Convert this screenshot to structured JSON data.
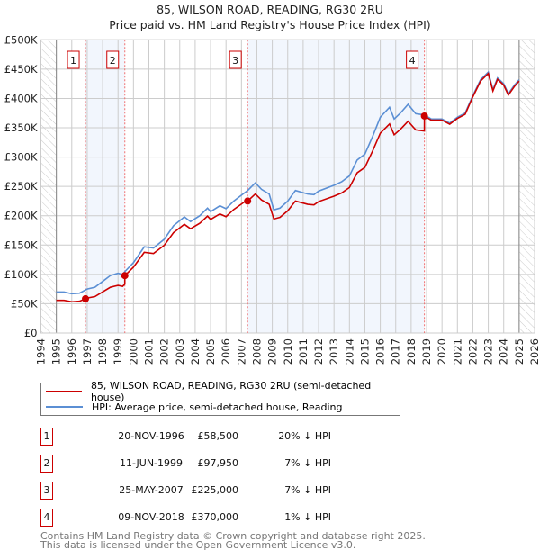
{
  "title": "85, WILSON ROAD, READING, RG30 2RU",
  "subtitle": "Price paid vs. HM Land Registry's House Price Index (HPI)",
  "chart_data": {
    "type": "line",
    "ylim": [
      0,
      500000
    ],
    "xlim": [
      1994,
      2026
    ],
    "yticks": [
      0,
      50000,
      100000,
      150000,
      200000,
      250000,
      300000,
      350000,
      400000,
      450000,
      500000
    ],
    "ytick_labels": [
      "£0",
      "£50K",
      "£100K",
      "£150K",
      "£200K",
      "£250K",
      "£300K",
      "£350K",
      "£400K",
      "£450K",
      "£500K"
    ],
    "xtick_labels": [
      "1994",
      "1995",
      "1996",
      "1997",
      "1998",
      "1999",
      "2000",
      "2001",
      "2002",
      "2003",
      "2004",
      "2005",
      "2006",
      "2007",
      "2008",
      "2009",
      "2010",
      "2011",
      "2012",
      "2013",
      "2014",
      "2015",
      "2016",
      "2017",
      "2018",
      "2019",
      "2020",
      "2021",
      "2022",
      "2023",
      "2024",
      "2025",
      "2026"
    ],
    "data_range": [
      1995,
      2025
    ],
    "grid": true,
    "legend_placement": "below",
    "series": [
      {
        "name": "85, WILSON ROAD, READING, RG30 2RU (semi-detached house)",
        "color": "#cc0000",
        "derived_from_sales": true
      },
      {
        "name": "HPI: Average price, semi-detached house, Reading",
        "color": "#5b8fd4",
        "points": [
          [
            1995,
            70000
          ],
          [
            1995.5,
            70000
          ],
          [
            1996,
            67000
          ],
          [
            1996.5,
            68000
          ],
          [
            1997,
            75000
          ],
          [
            1997.5,
            78000
          ],
          [
            1998,
            88000
          ],
          [
            1998.5,
            98000
          ],
          [
            1999,
            102000
          ],
          [
            1999.3,
            100000
          ],
          [
            1999.45,
            105000
          ],
          [
            2000,
            120000
          ],
          [
            2000.7,
            147000
          ],
          [
            2001.3,
            145000
          ],
          [
            2002,
            160000
          ],
          [
            2002.6,
            183000
          ],
          [
            2003.3,
            198000
          ],
          [
            2003.7,
            190000
          ],
          [
            2004.3,
            200000
          ],
          [
            2004.8,
            213000
          ],
          [
            2005,
            207000
          ],
          [
            2005.6,
            217000
          ],
          [
            2006,
            212000
          ],
          [
            2006.5,
            225000
          ],
          [
            2007,
            235000
          ],
          [
            2007.4,
            243000
          ],
          [
            2007.9,
            256000
          ],
          [
            2008.3,
            245000
          ],
          [
            2008.8,
            237000
          ],
          [
            2009.1,
            210000
          ],
          [
            2009.5,
            213000
          ],
          [
            2010,
            225000
          ],
          [
            2010.5,
            243000
          ],
          [
            2011.3,
            237000
          ],
          [
            2011.7,
            236000
          ],
          [
            2012,
            242000
          ],
          [
            2013,
            252000
          ],
          [
            2013.5,
            258000
          ],
          [
            2014,
            268000
          ],
          [
            2014.5,
            295000
          ],
          [
            2015,
            305000
          ],
          [
            2015.5,
            335000
          ],
          [
            2016,
            368000
          ],
          [
            2016.6,
            385000
          ],
          [
            2016.9,
            365000
          ],
          [
            2017.3,
            375000
          ],
          [
            2017.8,
            390000
          ],
          [
            2018.3,
            374000
          ],
          [
            2018.86,
            372000
          ],
          [
            2019.3,
            365000
          ],
          [
            2020,
            365000
          ],
          [
            2020.5,
            358000
          ],
          [
            2021,
            368000
          ],
          [
            2021.5,
            375000
          ],
          [
            2022,
            405000
          ],
          [
            2022.5,
            432000
          ],
          [
            2023,
            445000
          ],
          [
            2023.3,
            415000
          ],
          [
            2023.6,
            435000
          ],
          [
            2024,
            425000
          ],
          [
            2024.3,
            408000
          ],
          [
            2024.7,
            423000
          ],
          [
            2025,
            432000
          ]
        ]
      }
    ],
    "sales": [
      {
        "id": "1",
        "x": 1996.89,
        "value": 58500
      },
      {
        "id": "2",
        "x": 1999.44,
        "value": 97950
      },
      {
        "id": "3",
        "x": 2007.4,
        "value": 225000
      },
      {
        "id": "4",
        "x": 2018.86,
        "value": 370000
      }
    ],
    "shaded_periods": [
      [
        1996.89,
        1999.44
      ],
      [
        2007.4,
        2018.86
      ]
    ]
  },
  "legend": {
    "property": "85, WILSON ROAD, READING, RG30 2RU (semi-detached house)",
    "hpi": "HPI: Average price, semi-detached house, Reading"
  },
  "transactions": [
    {
      "id": "1",
      "date": "20-NOV-1996",
      "price": "£58,500",
      "hpi": "20% ↓ HPI"
    },
    {
      "id": "2",
      "date": "11-JUN-1999",
      "price": "£97,950",
      "hpi": "7% ↓ HPI"
    },
    {
      "id": "3",
      "date": "25-MAY-2007",
      "price": "£225,000",
      "hpi": "7% ↓ HPI"
    },
    {
      "id": "4",
      "date": "09-NOV-2018",
      "price": "£370,000",
      "hpi": "1% ↓ HPI"
    }
  ],
  "footer": {
    "line1": "Contains HM Land Registry data © Crown copyright and database right 2025.",
    "line2": "This data is licensed under the Open Government Licence v3.0."
  }
}
